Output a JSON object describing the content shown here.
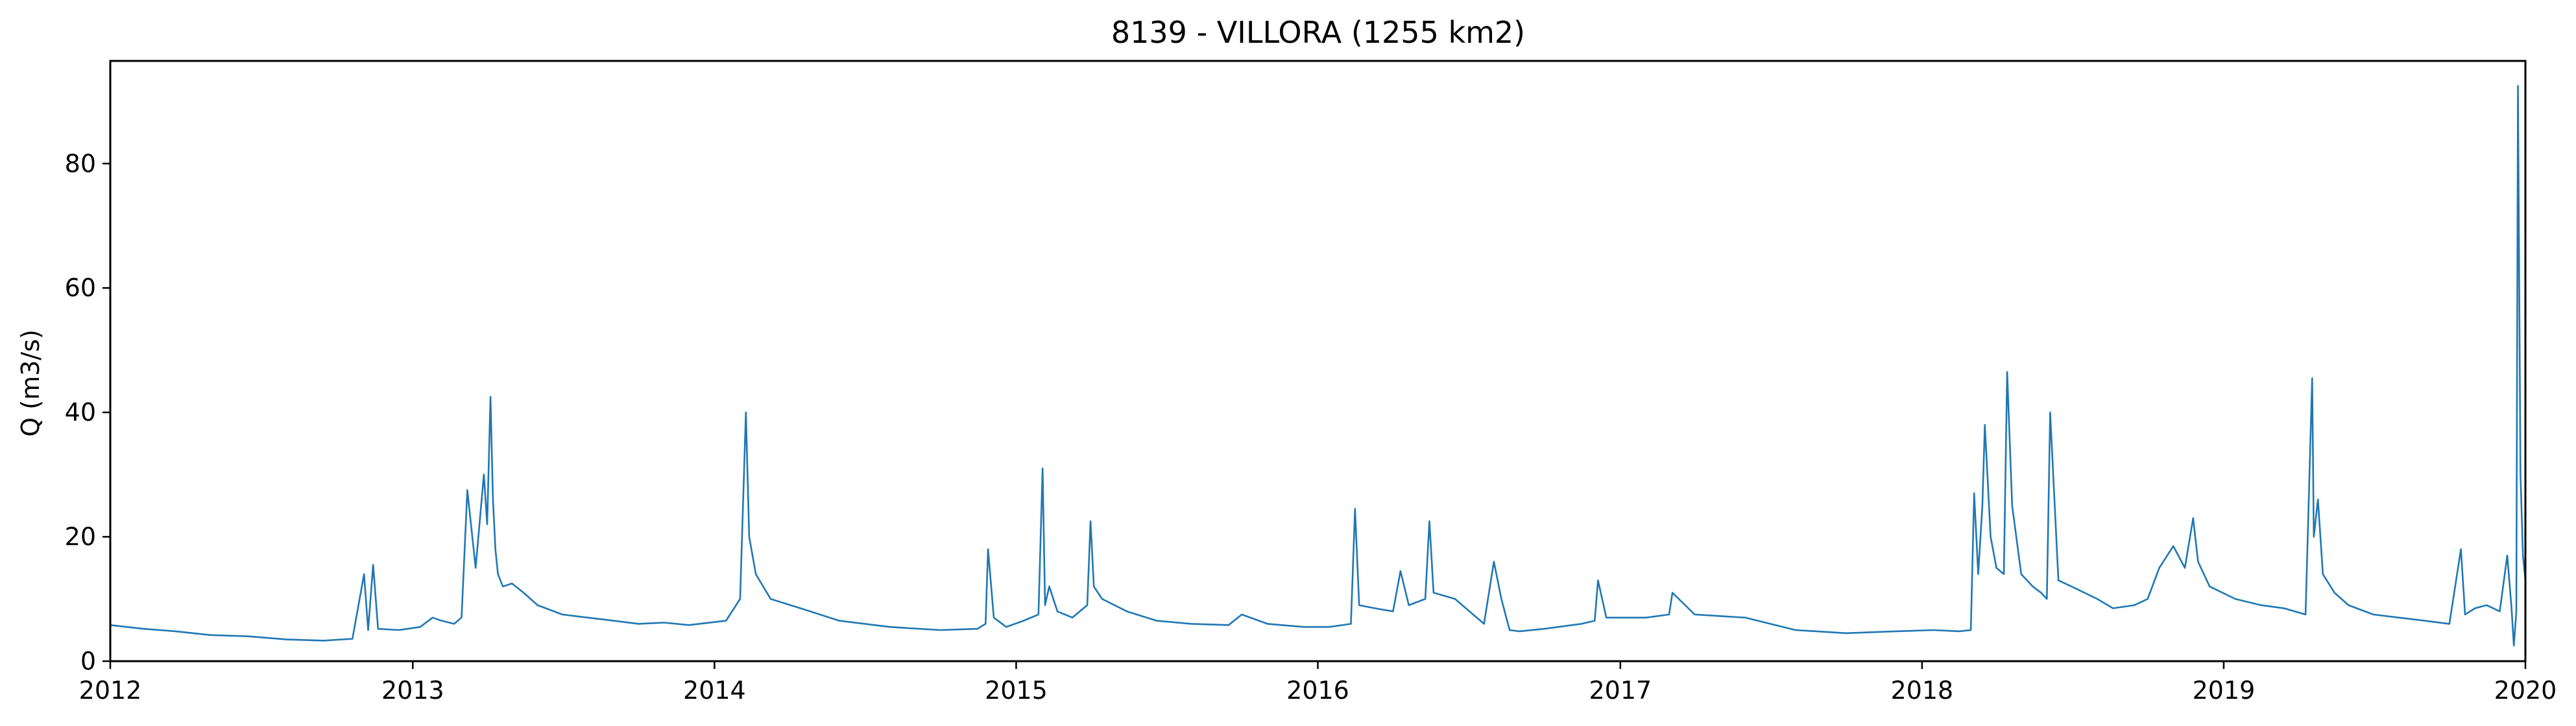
{
  "chart_data": {
    "type": "line",
    "title": "8139 - VILLORA (1255 km2)",
    "xlabel": "",
    "ylabel": "Q (m3/s)",
    "xlim": [
      "2012-01-01",
      "2020-01-01"
    ],
    "ylim": [
      0,
      96.5
    ],
    "x_ticks": [
      {
        "date": "2012-01-01",
        "label": "2012"
      },
      {
        "date": "2013-01-01",
        "label": "2013"
      },
      {
        "date": "2014-01-01",
        "label": "2014"
      },
      {
        "date": "2015-01-01",
        "label": "2015"
      },
      {
        "date": "2016-01-01",
        "label": "2016"
      },
      {
        "date": "2017-01-01",
        "label": "2017"
      },
      {
        "date": "2018-01-01",
        "label": "2018"
      },
      {
        "date": "2019-01-01",
        "label": "2019"
      },
      {
        "date": "2020-01-01",
        "label": "2020"
      }
    ],
    "y_ticks": [
      0,
      20,
      40,
      60,
      80
    ],
    "grid": false,
    "series": [
      {
        "color": "#1f77b4",
        "x": [
          "2012-01-01",
          "2012-02-10",
          "2012-03-20",
          "2012-05-01",
          "2012-06-15",
          "2012-08-01",
          "2012-09-15",
          "2012-10-20",
          "2012-11-03",
          "2012-11-08",
          "2012-11-14",
          "2012-11-20",
          "2012-12-15",
          "2013-01-10",
          "2013-01-25",
          "2013-02-05",
          "2013-02-20",
          "2013-03-01",
          "2013-03-08",
          "2013-03-18",
          "2013-03-28",
          "2013-04-01",
          "2013-04-05",
          "2013-04-08",
          "2013-04-11",
          "2013-04-14",
          "2013-04-20",
          "2013-05-01",
          "2013-05-15",
          "2013-06-01",
          "2013-07-01",
          "2013-08-01",
          "2013-09-01",
          "2013-10-01",
          "2013-11-01",
          "2013-12-01",
          "2014-01-15",
          "2014-02-01",
          "2014-02-08",
          "2014-02-12",
          "2014-02-20",
          "2014-03-10",
          "2014-04-15",
          "2014-06-01",
          "2014-08-01",
          "2014-10-01",
          "2014-11-15",
          "2014-11-25",
          "2014-11-28",
          "2014-12-05",
          "2014-12-20",
          "2015-01-10",
          "2015-01-28",
          "2015-02-02",
          "2015-02-05",
          "2015-02-10",
          "2015-02-20",
          "2015-03-10",
          "2015-03-28",
          "2015-04-01",
          "2015-04-05",
          "2015-04-15",
          "2015-05-15",
          "2015-06-20",
          "2015-08-01",
          "2015-09-15",
          "2015-10-01",
          "2015-11-01",
          "2015-12-15",
          "2016-01-15",
          "2016-02-10",
          "2016-02-15",
          "2016-02-20",
          "2016-03-10",
          "2016-04-01",
          "2016-04-10",
          "2016-04-20",
          "2016-05-10",
          "2016-05-15",
          "2016-05-20",
          "2016-06-15",
          "2016-07-20",
          "2016-08-01",
          "2016-08-10",
          "2016-08-20",
          "2016-09-01",
          "2016-10-01",
          "2016-11-15",
          "2016-12-01",
          "2016-12-05",
          "2016-12-15",
          "2017-02-01",
          "2017-03-01",
          "2017-03-05",
          "2017-04-01",
          "2017-06-01",
          "2017-08-01",
          "2017-10-01",
          "2017-12-01",
          "2018-01-15",
          "2018-02-15",
          "2018-03-01",
          "2018-03-05",
          "2018-03-10",
          "2018-03-15",
          "2018-03-18",
          "2018-03-25",
          "2018-04-01",
          "2018-04-10",
          "2018-04-14",
          "2018-04-20",
          "2018-05-01",
          "2018-05-15",
          "2018-05-25",
          "2018-06-01",
          "2018-06-05",
          "2018-06-15",
          "2018-07-01",
          "2018-08-01",
          "2018-08-20",
          "2018-09-15",
          "2018-10-01",
          "2018-10-15",
          "2018-11-01",
          "2018-11-15",
          "2018-11-25",
          "2018-12-01",
          "2018-12-15",
          "2019-01-15",
          "2019-02-15",
          "2019-03-15",
          "2019-04-10",
          "2019-04-18",
          "2019-04-20",
          "2019-04-25",
          "2019-05-01",
          "2019-05-15",
          "2019-06-01",
          "2019-07-01",
          "2019-08-01",
          "2019-09-01",
          "2019-10-01",
          "2019-10-15",
          "2019-10-20",
          "2019-11-01",
          "2019-11-15",
          "2019-12-01",
          "2019-12-10",
          "2019-12-15",
          "2019-12-18",
          "2019-12-21",
          "2019-12-23",
          "2019-12-26",
          "2019-12-29",
          "2020-01-01"
        ],
        "y": [
          5.8,
          5.2,
          4.8,
          4.2,
          4.0,
          3.5,
          3.3,
          3.6,
          14.0,
          5.0,
          15.5,
          5.2,
          5.0,
          5.5,
          7.0,
          6.5,
          6.0,
          7.0,
          27.5,
          15.0,
          30.0,
          22.0,
          42.5,
          26.0,
          18.0,
          14.0,
          12.0,
          12.5,
          11.0,
          9.0,
          7.5,
          7.0,
          6.5,
          6.0,
          6.2,
          5.8,
          6.5,
          10.0,
          40.0,
          20.0,
          14.0,
          10.0,
          8.5,
          6.5,
          5.5,
          5.0,
          5.2,
          6.0,
          18.0,
          7.0,
          5.5,
          6.5,
          7.5,
          31.0,
          9.0,
          12.0,
          8.0,
          7.0,
          9.0,
          22.5,
          12.0,
          10.0,
          8.0,
          6.5,
          6.0,
          5.8,
          7.5,
          6.0,
          5.5,
          5.5,
          6.0,
          24.5,
          9.0,
          8.5,
          8.0,
          14.5,
          9.0,
          10.0,
          22.5,
          11.0,
          10.0,
          6.0,
          16.0,
          10.0,
          5.0,
          4.8,
          5.2,
          6.0,
          6.5,
          13.0,
          7.0,
          7.0,
          7.5,
          11.0,
          7.5,
          7.0,
          5.0,
          4.5,
          4.8,
          5.0,
          4.8,
          5.0,
          27.0,
          14.0,
          25.0,
          38.0,
          20.0,
          15.0,
          14.0,
          46.5,
          25.0,
          14.0,
          12.0,
          11.0,
          10.0,
          40.0,
          13.0,
          12.0,
          10.0,
          8.5,
          9.0,
          10.0,
          15.0,
          18.5,
          15.0,
          23.0,
          16.0,
          12.0,
          10.0,
          9.0,
          8.5,
          7.5,
          45.5,
          20.0,
          26.0,
          14.0,
          11.0,
          9.0,
          7.5,
          7.0,
          6.5,
          6.0,
          18.0,
          7.5,
          8.5,
          9.0,
          8.0,
          17.0,
          9.0,
          2.5,
          8.0,
          92.5,
          30.0,
          17.0,
          13.0
        ]
      }
    ]
  }
}
